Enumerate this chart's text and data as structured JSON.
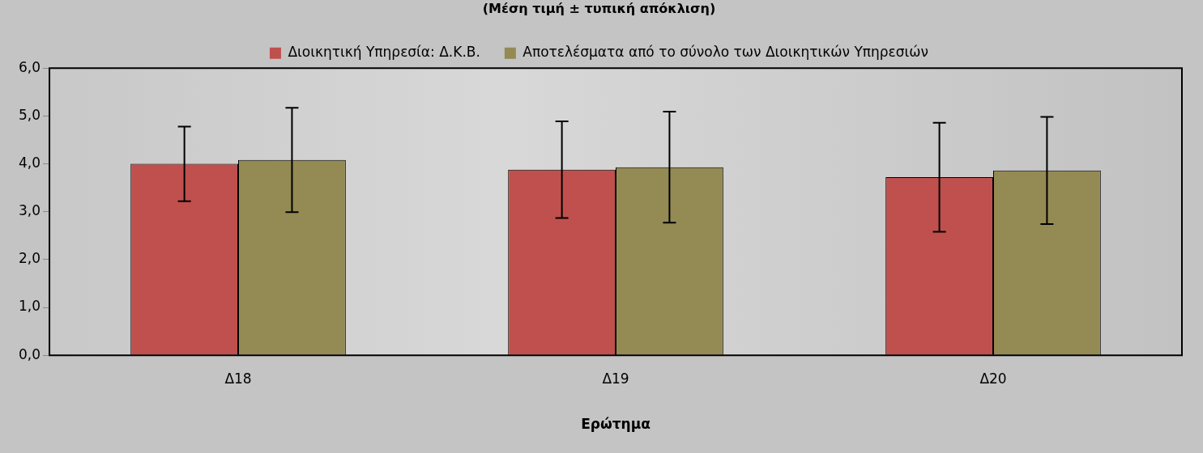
{
  "chart_data": {
    "type": "bar",
    "title": "(Μέση τιμή ± τυπική απόκλιση)",
    "xlabel": "Ερώτημα",
    "categories": [
      "Δ18",
      "Δ19",
      "Δ20"
    ],
    "series": [
      {
        "name": "Διοικητική Υπηρεσία: Δ.Κ.Β.",
        "color": "#c0504d",
        "values": [
          4.0,
          3.88,
          3.72
        ],
        "errors": [
          0.78,
          1.01,
          1.14
        ]
      },
      {
        "name": "Αποτελέσματα από το σύνολο των Διοικητικών Υπηρεσιών",
        "color": "#948a54",
        "values": [
          4.08,
          3.93,
          3.86
        ],
        "errors": [
          1.09,
          1.16,
          1.12
        ]
      }
    ],
    "ylim": [
      0,
      6
    ],
    "yticks": [
      {
        "value": 0,
        "label": "0,0"
      },
      {
        "value": 1,
        "label": "1,0"
      },
      {
        "value": 2,
        "label": "2,0"
      },
      {
        "value": 3,
        "label": "3,0"
      },
      {
        "value": 4,
        "label": "4,0"
      },
      {
        "value": 5,
        "label": "5,0"
      },
      {
        "value": 6,
        "label": "6,0"
      }
    ],
    "grid": false,
    "legend": "top"
  }
}
